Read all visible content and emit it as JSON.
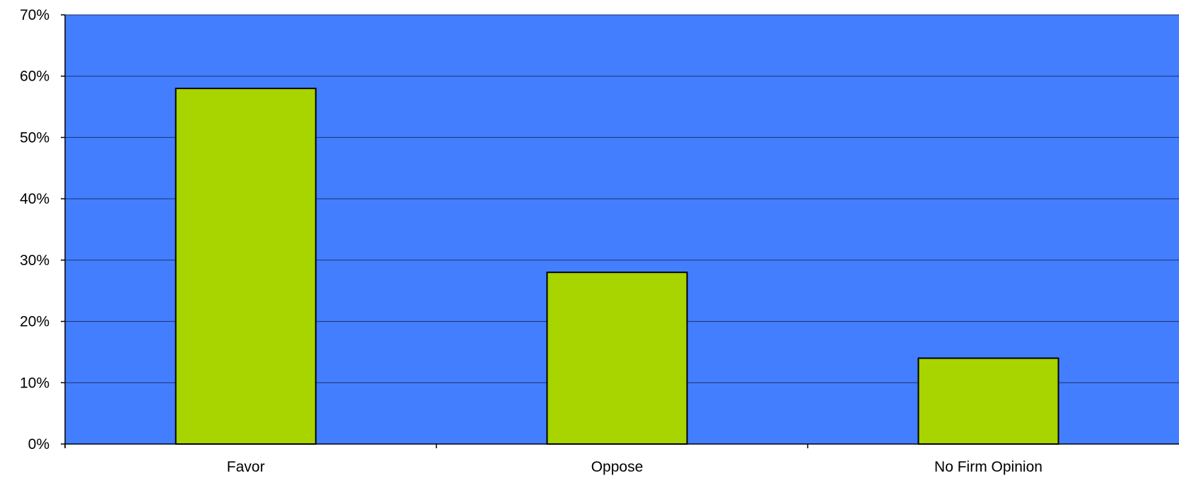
{
  "chart_data": {
    "type": "bar",
    "title": "",
    "xlabel": "",
    "ylabel": "",
    "categories": [
      "Favor",
      "Oppose",
      "No Firm Opinion"
    ],
    "values": [
      58,
      28,
      14
    ],
    "unit": "%",
    "ylim": [
      0,
      70
    ],
    "yticks": [
      0,
      10,
      20,
      30,
      40,
      50,
      60,
      70
    ],
    "ytick_labels": [
      "0%",
      "10%",
      "20%",
      "30%",
      "40%",
      "50%",
      "60%",
      "70%"
    ],
    "grid": true,
    "legend": "none"
  },
  "colors": {
    "plot_background": "#437eff",
    "bar_fill": "#a8d400",
    "bar_stroke": "#000000",
    "gridline": "#1f2f6a",
    "axis": "#000000"
  }
}
